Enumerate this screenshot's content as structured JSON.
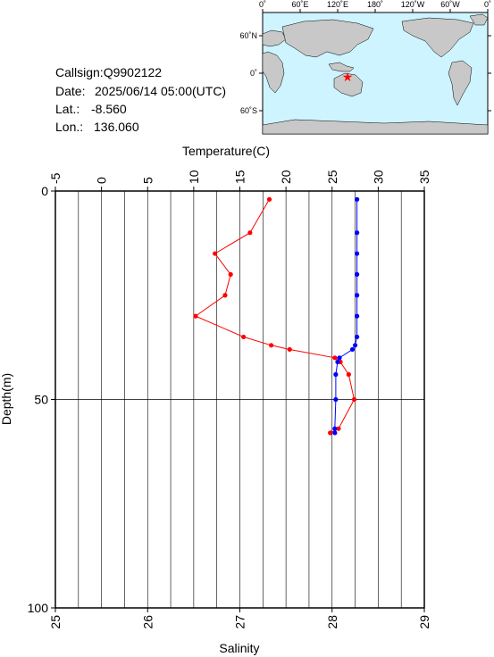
{
  "station": {
    "callsign_label": "Callsign:",
    "callsign": "Q9902122",
    "date_label": "Date:",
    "date": "2025/06/14 05:00(UTC)",
    "lat_label": "Lat.:",
    "lat": "-8.560",
    "lon_label": "Lon.:",
    "lon": "136.060"
  },
  "map": {
    "top_labels": [
      "0˚",
      "60˚E",
      "120˚E",
      "180˚",
      "120˚W",
      "60˚W",
      "0˚"
    ],
    "left_labels": [
      "60˚N",
      "0˚",
      "60˚S"
    ],
    "ocean_color": "#cdf4ff",
    "land_color": "#c8c8c8",
    "marker_color": "#ff0000"
  },
  "chart_data": {
    "type": "line",
    "xlabel_top": "Temperature(C)",
    "xlabel_bottom": "Salinity",
    "ylabel": "Depth(m)",
    "temperature_range": [
      -5,
      35
    ],
    "salinity_range": [
      25,
      29
    ],
    "depth_range": [
      0,
      100
    ],
    "temperature_ticks": [
      "-5",
      "0",
      "5",
      "10",
      "15",
      "20",
      "25",
      "30",
      "35"
    ],
    "salinity_ticks": [
      "25",
      "26",
      "27",
      "28",
      "29"
    ],
    "depth_ticks": [
      "0",
      "50",
      "100"
    ],
    "grid": true,
    "series": [
      {
        "color": "#ff0000",
        "depth": [
          2,
          10,
          15,
          20,
          25,
          30,
          35,
          37,
          38,
          40,
          41,
          44,
          50,
          57,
          58
        ],
        "temperature": [
          18.2,
          16.1,
          12.3,
          14.0,
          13.4,
          10.2,
          15.4,
          18.4,
          20.4,
          25.3,
          25.9,
          26.8,
          27.4,
          25.7,
          24.8
        ]
      },
      {
        "color": "#0000ff",
        "depth": [
          2,
          10,
          15,
          20,
          25,
          30,
          35,
          37,
          38,
          40,
          41,
          44,
          50,
          57,
          58
        ],
        "salinity": [
          28.27,
          28.27,
          28.27,
          28.27,
          28.27,
          28.27,
          28.27,
          28.25,
          28.22,
          28.08,
          28.06,
          28.04,
          28.04,
          28.03,
          28.03
        ]
      }
    ]
  }
}
